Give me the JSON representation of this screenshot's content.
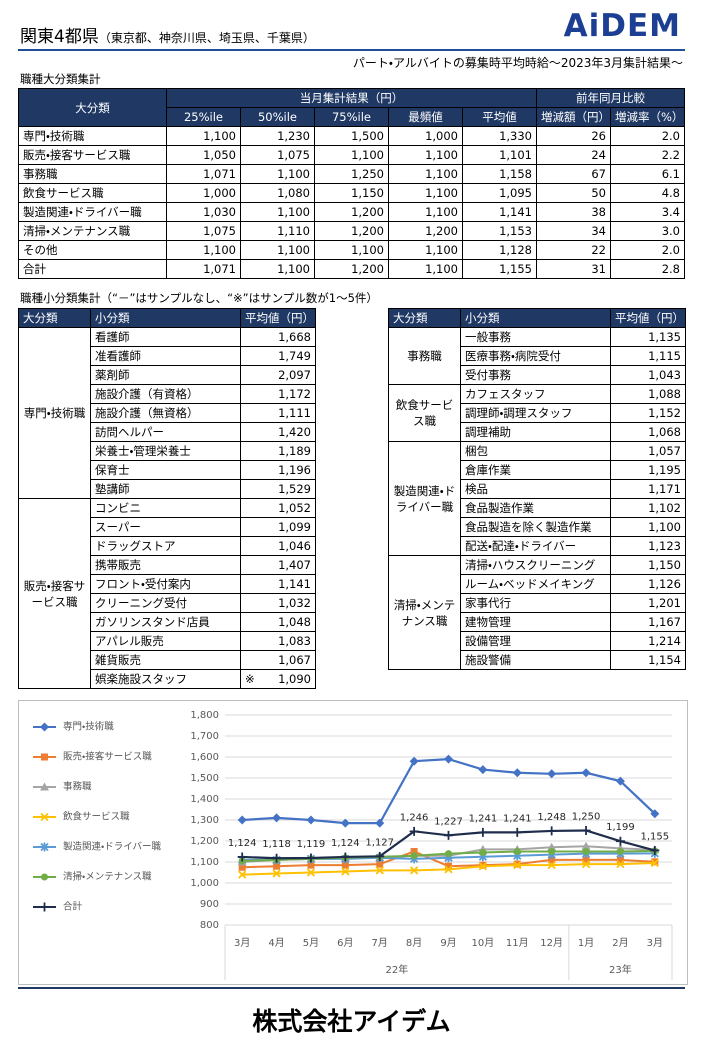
{
  "header": {
    "title": "関東4都県",
    "regions": "（東京都、神奈川県、埼玉県、千葉県）",
    "logo": "AiDEM",
    "subtitle": "パート・アルバイトの募集時平均時給～2023年3月集計結果～"
  },
  "summary_table": {
    "title": "職種大分類集計",
    "group_headers": [
      "大分類",
      "当月集計結果（円）",
      "前年同月比較"
    ],
    "columns": [
      "25%ile",
      "50%ile",
      "75%ile",
      "最頻値",
      "平均値",
      "増減額（円）",
      "増減率（%）"
    ],
    "rows": [
      [
        "専門・技術職",
        "1,100",
        "1,230",
        "1,500",
        "1,000",
        "1,330",
        "26",
        "2.0"
      ],
      [
        "販売・接客サービス職",
        "1,050",
        "1,075",
        "1,100",
        "1,100",
        "1,101",
        "24",
        "2.2"
      ],
      [
        "事務職",
        "1,071",
        "1,100",
        "1,250",
        "1,100",
        "1,158",
        "67",
        "6.1"
      ],
      [
        "飲食サービス職",
        "1,000",
        "1,080",
        "1,150",
        "1,100",
        "1,095",
        "50",
        "4.8"
      ],
      [
        "製造関連・ドライバー職",
        "1,030",
        "1,100",
        "1,200",
        "1,100",
        "1,141",
        "38",
        "3.4"
      ],
      [
        "清掃・メンテナンス職",
        "1,075",
        "1,110",
        "1,200",
        "1,200",
        "1,153",
        "34",
        "3.0"
      ],
      [
        "その他",
        "1,100",
        "1,100",
        "1,100",
        "1,100",
        "1,128",
        "22",
        "2.0"
      ],
      [
        "合計",
        "1,071",
        "1,100",
        "1,200",
        "1,100",
        "1,155",
        "31",
        "2.8"
      ]
    ]
  },
  "detail_tables": {
    "title": "職種小分類集計（“－”はサンプルなし、“※”はサンプル数が1～5件）",
    "columns": [
      "大分類",
      "小分類",
      "平均値（円）"
    ],
    "left": [
      {
        "group": "専門・技術職",
        "items": [
          [
            "看護師",
            "1,668"
          ],
          [
            "准看護師",
            "1,749"
          ],
          [
            "薬剤師",
            "2,097"
          ],
          [
            "施設介護（有資格）",
            "1,172"
          ],
          [
            "施設介護（無資格）",
            "1,111"
          ],
          [
            "訪問ヘルパー",
            "1,420"
          ],
          [
            "栄養士・管理栄養士",
            "1,189"
          ],
          [
            "保育士",
            "1,196"
          ],
          [
            "塾講師",
            "1,529"
          ]
        ]
      },
      {
        "group": "販売・接客サービス職",
        "items": [
          [
            "コンビニ",
            "1,052"
          ],
          [
            "スーパー",
            "1,099"
          ],
          [
            "ドラッグストア",
            "1,046"
          ],
          [
            "携帯販売",
            "1,407"
          ],
          [
            "フロント・受付案内",
            "1,141"
          ],
          [
            "クリーニング受付",
            "1,032"
          ],
          [
            "ガソリンスタンド店員",
            "1,048"
          ],
          [
            "アパレル販売",
            "1,083"
          ],
          [
            "雑貨販売",
            "1,067"
          ],
          [
            "娯楽施設スタッフ",
            "1,090",
            "※"
          ]
        ]
      }
    ],
    "right": [
      {
        "group": "事務職",
        "items": [
          [
            "一般事務",
            "1,135"
          ],
          [
            "医療事務・病院受付",
            "1,115"
          ],
          [
            "受付事務",
            "1,043"
          ]
        ]
      },
      {
        "group": "飲食サービス職",
        "items": [
          [
            "カフェスタッフ",
            "1,088"
          ],
          [
            "調理師・調理スタッフ",
            "1,152"
          ],
          [
            "調理補助",
            "1,068"
          ]
        ]
      },
      {
        "group": "製造関連・ドライバー職",
        "items": [
          [
            "梱包",
            "1,057"
          ],
          [
            "倉庫作業",
            "1,195"
          ],
          [
            "検品",
            "1,171"
          ],
          [
            "食品製造作業",
            "1,102"
          ],
          [
            "食品製造を除く製造作業",
            "1,100"
          ],
          [
            "配送・配達・ドライバー",
            "1,123"
          ]
        ]
      },
      {
        "group": "清掃・メンテナンス職",
        "items": [
          [
            "清掃・ハウスクリーニング",
            "1,150"
          ],
          [
            "ルーム・ベッドメイキング",
            "1,126"
          ],
          [
            "家事代行",
            "1,201"
          ],
          [
            "建物管理",
            "1,167"
          ],
          [
            "設備管理",
            "1,214"
          ],
          [
            "施設警備",
            "1,154"
          ]
        ]
      }
    ]
  },
  "chart_data": {
    "type": "line",
    "categories": [
      "3月",
      "4月",
      "5月",
      "6月",
      "7月",
      "8月",
      "9月",
      "10月",
      "11月",
      "12月",
      "1月",
      "2月",
      "3月"
    ],
    "x_groups": [
      "22年",
      "23年"
    ],
    "ylim": [
      800,
      1800
    ],
    "yticks": [
      800,
      900,
      {
        "value": 1000,
        "label": "1,000"
      },
      {
        "value": 1100,
        "label": "1,100"
      },
      {
        "value": 1200,
        "label": "1,200"
      },
      {
        "value": 1300,
        "label": "1,300"
      },
      {
        "value": 1400,
        "label": "1,400"
      },
      {
        "value": 1500,
        "label": "1,500"
      },
      {
        "value": 1600,
        "label": "1,600"
      },
      {
        "value": 1700,
        "label": "1,700"
      },
      {
        "value": 1800,
        "label": "1,800"
      }
    ],
    "grid": true,
    "legend": "left",
    "series": [
      {
        "name": "専門・技術職",
        "color": "#4472c4",
        "marker": "diamond",
        "values": [
          1300,
          1310,
          1300,
          1285,
          1285,
          1580,
          1590,
          1540,
          1525,
          1520,
          1525,
          1485,
          1330
        ]
      },
      {
        "name": "販売・接客サービス職",
        "color": "#ed7d31",
        "marker": "square",
        "values": [
          1075,
          1080,
          1085,
          1085,
          1090,
          1150,
          1080,
          1085,
          1090,
          1110,
          1110,
          1110,
          1101
        ]
      },
      {
        "name": "事務職",
        "color": "#a5a5a5",
        "marker": "triangle",
        "values": [
          1100,
          1110,
          1115,
          1120,
          1120,
          1130,
          1130,
          1160,
          1160,
          1170,
          1175,
          1165,
          1158
        ]
      },
      {
        "name": "飲食サービス職",
        "color": "#ffc000",
        "marker": "x",
        "values": [
          1040,
          1045,
          1050,
          1055,
          1060,
          1060,
          1065,
          1080,
          1085,
          1085,
          1090,
          1090,
          1095
        ]
      },
      {
        "name": "製造関連・ドライバー職",
        "color": "#5b9bd5",
        "marker": "star",
        "values": [
          1110,
          1110,
          1115,
          1115,
          1120,
          1115,
          1120,
          1125,
          1130,
          1135,
          1140,
          1140,
          1141
        ]
      },
      {
        "name": "清掃・メンテナンス職",
        "color": "#70ad47",
        "marker": "circle",
        "values": [
          1105,
          1110,
          1115,
          1120,
          1125,
          1130,
          1140,
          1145,
          1150,
          1150,
          1150,
          1150,
          1153
        ]
      },
      {
        "name": "合計",
        "color": "#1f2d4d",
        "marker": "plus",
        "values": [
          1124,
          1118,
          1119,
          1124,
          1127,
          1246,
          1227,
          1241,
          1241,
          1248,
          1250,
          1199,
          1155
        ],
        "value_labels": [
          "1,124",
          "1,118",
          "1,119",
          "1,124",
          "1,127",
          "1,246",
          "1,227",
          "1,241",
          "1,241",
          "1,248",
          "1,250",
          "1,199",
          "1,155"
        ]
      }
    ]
  },
  "footer": {
    "company": "株式会社アイデム"
  }
}
